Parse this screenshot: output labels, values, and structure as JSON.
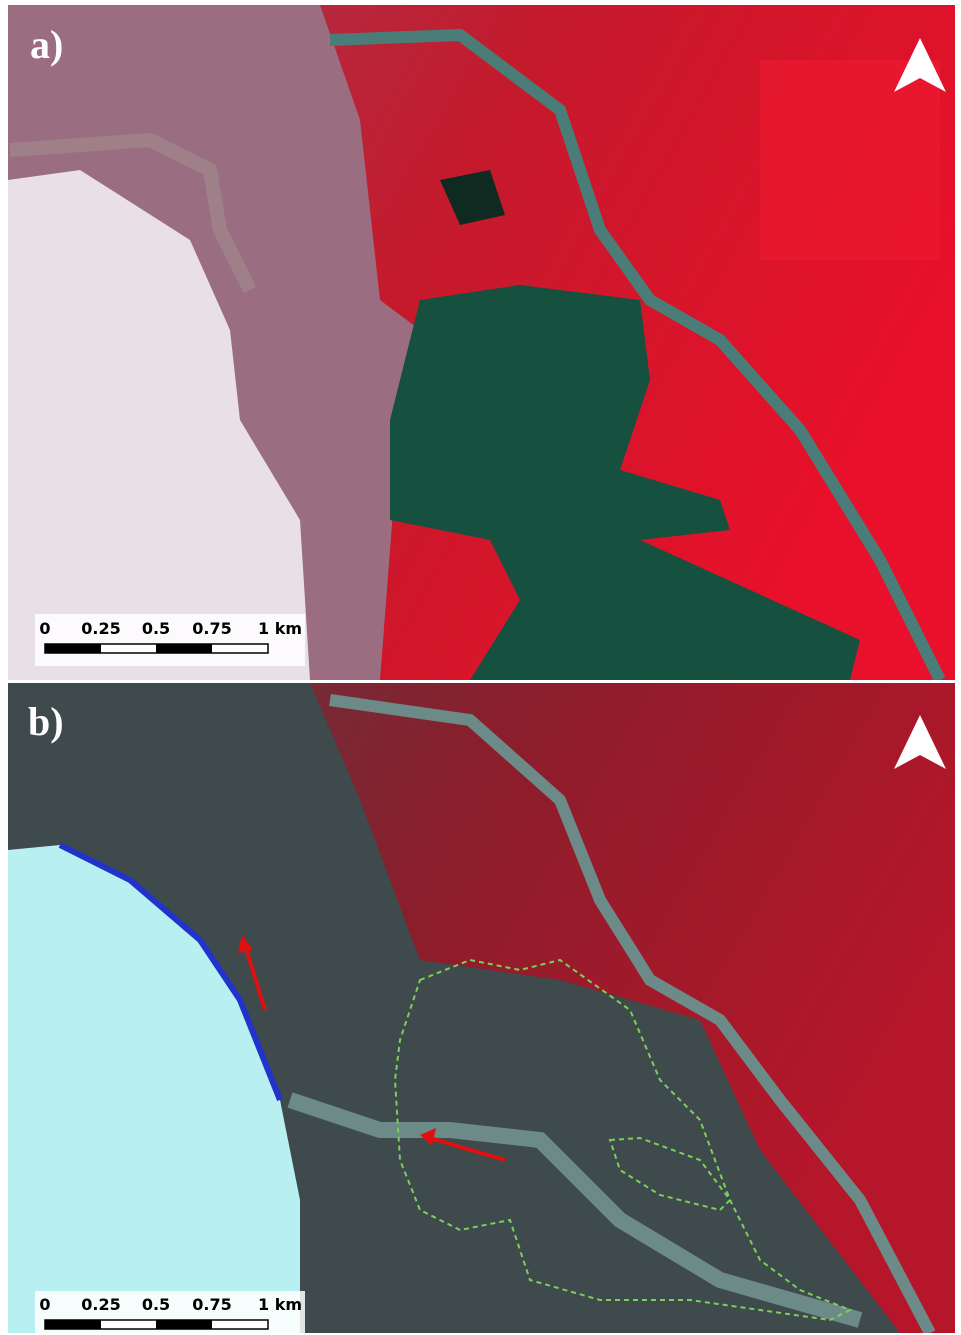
{
  "panels": [
    {
      "label": "a)",
      "scale_bar": [
        "0",
        "0.25",
        "0.5",
        "0.75",
        "1 km"
      ]
    },
    {
      "label": "b)",
      "scale_bar": [
        "0",
        "0.25",
        "0.5",
        "0.75",
        "1 km"
      ]
    }
  ]
}
